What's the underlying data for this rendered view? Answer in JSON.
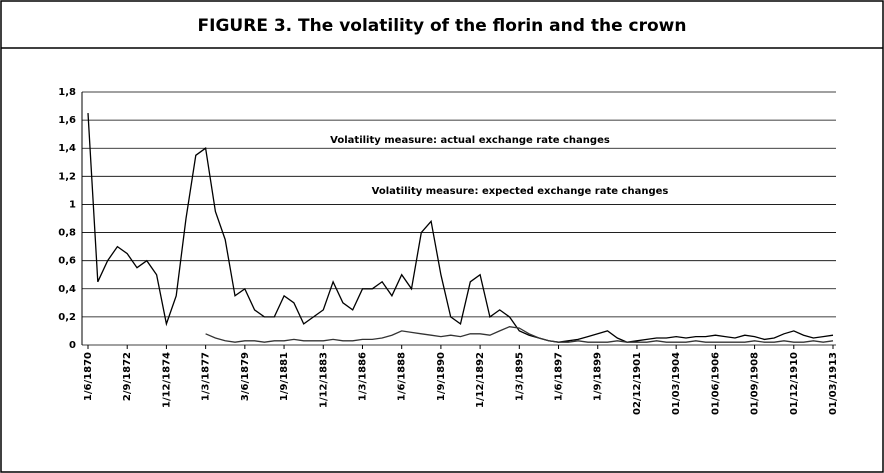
{
  "chart_data": {
    "type": "line",
    "title": "FIGURE 3. The volatility of the florin and the crown",
    "annotations": [
      "Volatility measure: actual exchange rate changes",
      "Volatility measure: expected exchange rate changes"
    ],
    "categories": [
      "1/6/1870",
      null,
      null,
      null,
      "2/9/1872",
      null,
      null,
      null,
      "1/12/1874",
      null,
      null,
      null,
      "1/3/1877",
      null,
      null,
      null,
      "3/6/1879",
      null,
      null,
      null,
      "1/9/1881",
      null,
      null,
      null,
      "1/12/1883",
      null,
      null,
      null,
      "1/3/1886",
      null,
      null,
      null,
      "1/6/1888",
      null,
      null,
      null,
      "1/9/1890",
      null,
      null,
      null,
      "1/12/1892",
      null,
      null,
      null,
      "1/3/1895",
      null,
      null,
      null,
      "1/6/1897",
      null,
      null,
      null,
      "1/9/1899",
      null,
      null,
      null,
      "02/12/1901",
      null,
      null,
      null,
      "01/03/1904",
      null,
      null,
      null,
      "01/06/1906",
      null,
      null,
      null,
      "01/09/1908",
      null,
      null,
      null,
      "01/12/1910",
      null,
      null,
      null,
      "01/03/1913"
    ],
    "series": [
      {
        "color": "#000000",
        "values": [
          1.65,
          0.45,
          0.6,
          0.7,
          0.65,
          0.55,
          0.6,
          0.5,
          0.15,
          0.35,
          0.9,
          1.35,
          1.4,
          0.95,
          0.75,
          0.35,
          0.4,
          0.25,
          0.2,
          0.2,
          0.35,
          0.3,
          0.15,
          0.2,
          0.25,
          0.45,
          0.3,
          0.25,
          0.4,
          0.4,
          0.45,
          0.35,
          0.5,
          0.4,
          0.8,
          0.88,
          0.5,
          0.2,
          0.15,
          0.45,
          0.5,
          0.2,
          0.25,
          0.2,
          0.1,
          0.07,
          0.05,
          0.03,
          0.02,
          0.03,
          0.04,
          0.06,
          0.08,
          0.1,
          0.05,
          0.02,
          0.03,
          0.04,
          0.05,
          0.05,
          0.06,
          0.05,
          0.06,
          0.06,
          0.07,
          0.06,
          0.05,
          0.07,
          0.06,
          0.04,
          0.05,
          0.08,
          0.1,
          0.07,
          0.05,
          0.06,
          0.07
        ]
      },
      {
        "color": "#333333",
        "values": [
          null,
          null,
          null,
          null,
          null,
          null,
          null,
          null,
          null,
          null,
          null,
          null,
          0.08,
          0.05,
          0.03,
          0.02,
          0.03,
          0.03,
          0.02,
          0.03,
          0.03,
          0.04,
          0.03,
          0.03,
          0.03,
          0.04,
          0.03,
          0.03,
          0.04,
          0.04,
          0.05,
          0.07,
          0.1,
          0.09,
          0.08,
          0.07,
          0.06,
          0.07,
          0.06,
          0.08,
          0.08,
          0.07,
          0.1,
          0.13,
          0.12,
          0.08,
          0.05,
          0.03,
          0.02,
          0.02,
          0.03,
          0.02,
          0.02,
          0.02,
          0.03,
          0.02,
          0.02,
          0.02,
          0.03,
          0.02,
          0.02,
          0.02,
          0.03,
          0.02,
          0.02,
          0.02,
          0.02,
          0.02,
          0.03,
          0.02,
          0.02,
          0.03,
          0.02,
          0.02,
          0.03,
          0.02,
          0.03
        ]
      }
    ],
    "ylim": [
      0,
      1.8
    ],
    "yticks": [
      0,
      {
        "value": 0.2,
        "label": "0,2"
      },
      {
        "value": 0.4,
        "label": "0,4"
      },
      {
        "value": 0.6,
        "label": "0,6"
      },
      {
        "value": 0.8,
        "label": "0,8"
      },
      1,
      {
        "value": 1.2,
        "label": "1,2"
      },
      {
        "value": 1.4,
        "label": "1,4"
      },
      {
        "value": 1.6,
        "label": "1,6"
      },
      {
        "value": 1.8,
        "label": "1,8"
      }
    ],
    "grid": true
  }
}
